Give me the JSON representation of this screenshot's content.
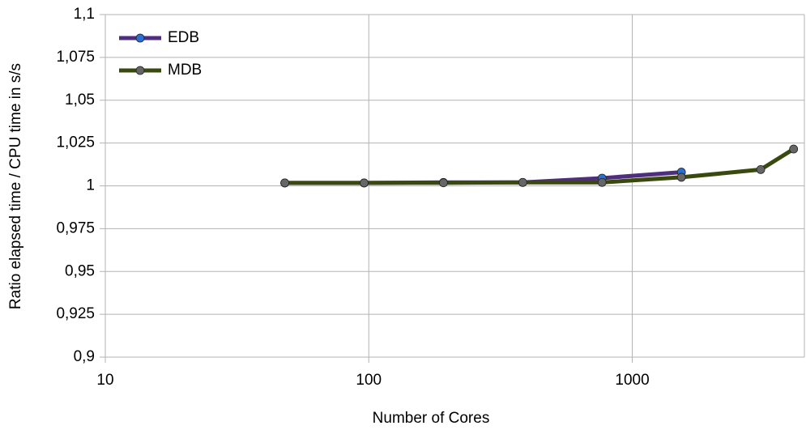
{
  "chart_data": {
    "type": "line",
    "x_label": "Number of Cores",
    "y_label": "Ratio elapsed time / CPU time in s/s",
    "x": [
      48,
      96,
      192,
      384,
      768,
      1536,
      3072,
      4096
    ],
    "series": [
      {
        "name": "EDB",
        "color": "#4f2d7f",
        "marker_color": "#2a6fd6",
        "values": [
          1.0017,
          1.0017,
          1.002,
          1.002,
          1.0045,
          1.008,
          null,
          null
        ]
      },
      {
        "name": "MDB",
        "color": "#3a4a0f",
        "marker_color": "#666666",
        "values": [
          1.0017,
          1.0017,
          1.0018,
          1.002,
          1.002,
          1.005,
          1.0095,
          1.0215
        ]
      }
    ],
    "xlog": true,
    "xlim": [
      10,
      4500
    ],
    "xticks": [
      10,
      100,
      1000
    ],
    "ylim": [
      0.9,
      1.1
    ],
    "yticks": [
      {
        "value": 0.9,
        "label": "0,9"
      },
      {
        "value": 0.925,
        "label": "0,925"
      },
      {
        "value": 0.95,
        "label": "0,95"
      },
      {
        "value": 0.975,
        "label": "0,975"
      },
      1,
      {
        "value": 1.025,
        "label": "1,025"
      },
      {
        "value": 1.05,
        "label": "1,05"
      },
      {
        "value": 1.075,
        "label": "1,075"
      },
      {
        "value": 1.1,
        "label": "1,1"
      }
    ],
    "grid": true,
    "legend": "top-left"
  }
}
